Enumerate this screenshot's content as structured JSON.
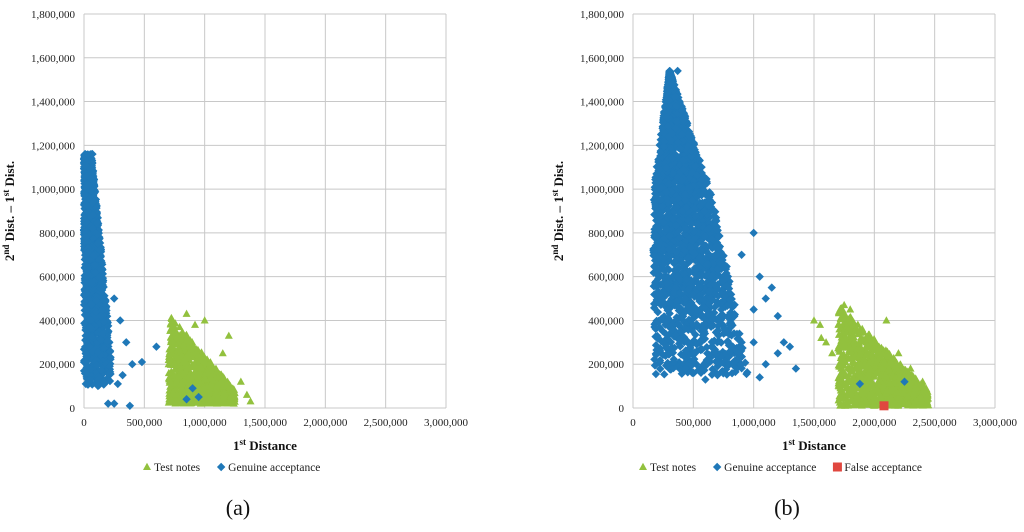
{
  "colors": {
    "test": "#92c13e",
    "genuine": "#1f78b8",
    "false": "#e0473f",
    "grid": "#c8c8c8"
  },
  "chart_data": [
    {
      "type": "scatter",
      "panel_label": "(a)",
      "xlabel_main": "1",
      "xlabel_sup": "st",
      "xlabel_rest": " Distance",
      "ylabel_parts": [
        "2",
        "nd",
        " Dist. – 1",
        "st",
        " Dist."
      ],
      "xlim": [
        0,
        3000000
      ],
      "ylim": [
        0,
        1800000
      ],
      "x_ticks": [
        "0",
        "500,000",
        "1,000,000",
        "1,500,000",
        "2,000,000",
        "2,500,000",
        "3,000,000"
      ],
      "y_ticks": [
        "0",
        "200,000",
        "400,000",
        "600,000",
        "800,000",
        "1,000,000",
        "1,200,000",
        "1,400,000",
        "1,600,000",
        "1,800,000"
      ],
      "legend": [
        "Test notes",
        "Genuine acceptance"
      ],
      "series": [
        {
          "name": "Test notes",
          "marker": "triangle",
          "clusters": [
            {
              "x": [
                700000,
                1250000
              ],
              "y": [
                20000,
                430000
              ],
              "count": 900,
              "shape": "wedge"
            }
          ],
          "points": [
            [
              1000000,
              400000
            ],
            [
              850000,
              430000
            ],
            [
              920000,
              380000
            ],
            [
              1300000,
              120000
            ],
            [
              1350000,
              60000
            ],
            [
              1380000,
              30000
            ],
            [
              1150000,
              250000
            ],
            [
              1200000,
              330000
            ]
          ]
        },
        {
          "name": "Genuine acceptance",
          "marker": "diamond",
          "clusters": [
            {
              "x": [
                0,
                250000
              ],
              "y": [
                100000,
                1160000
              ],
              "count": 1400,
              "shape": "tail"
            }
          ],
          "points": [
            [
              70000,
              1160000
            ],
            [
              250000,
              20000
            ],
            [
              380000,
              10000
            ],
            [
              200000,
              20000
            ],
            [
              600000,
              280000
            ],
            [
              480000,
              210000
            ],
            [
              400000,
              200000
            ],
            [
              350000,
              300000
            ],
            [
              300000,
              400000
            ],
            [
              900000,
              90000
            ],
            [
              850000,
              40000
            ],
            [
              950000,
              50000
            ],
            [
              280000,
              110000
            ],
            [
              320000,
              150000
            ],
            [
              250000,
              500000
            ]
          ]
        }
      ]
    },
    {
      "type": "scatter",
      "panel_label": "(b)",
      "xlabel_main": "1",
      "xlabel_sup": "st",
      "xlabel_rest": " Distance",
      "ylabel_parts": [
        "2",
        "nd",
        " Dist. – 1",
        "st",
        " Dist."
      ],
      "xlim": [
        0,
        3000000
      ],
      "ylim": [
        0,
        1800000
      ],
      "x_ticks": [
        "0",
        "500,000",
        "1,000,000",
        "1,500,000",
        "2,000,000",
        "2,500,000",
        "3,000,000"
      ],
      "y_ticks": [
        "0",
        "200,000",
        "400,000",
        "600,000",
        "800,000",
        "1,000,000",
        "1,200,000",
        "1,400,000",
        "1,600,000",
        "1,800,000"
      ],
      "legend": [
        "Test notes",
        "Genuine acceptance",
        "False acceptance"
      ],
      "series": [
        {
          "name": "Test notes",
          "marker": "triangle",
          "clusters": [
            {
              "x": [
                1700000,
                2450000
              ],
              "y": [
                10000,
                470000
              ],
              "count": 1100,
              "shape": "wedge"
            }
          ],
          "points": [
            [
              1500000,
              400000
            ],
            [
              1550000,
              380000
            ],
            [
              1650000,
              250000
            ],
            [
              1600000,
              300000
            ],
            [
              1750000,
              470000
            ],
            [
              1800000,
              450000
            ],
            [
              2100000,
              400000
            ],
            [
              2200000,
              250000
            ],
            [
              2300000,
              180000
            ],
            [
              2400000,
              120000
            ],
            [
              1560000,
              320000
            ]
          ]
        },
        {
          "name": "Genuine acceptance",
          "marker": "diamond",
          "clusters": [
            {
              "x": [
                150000,
                900000
              ],
              "y": [
                150000,
                1540000
              ],
              "count": 2200,
              "shape": "blob"
            }
          ],
          "points": [
            [
              370000,
              1540000
            ],
            [
              600000,
              130000
            ],
            [
              700000,
              150000
            ],
            [
              800000,
              200000
            ],
            [
              900000,
              300000
            ],
            [
              1000000,
              450000
            ],
            [
              1050000,
              600000
            ],
            [
              1000000,
              300000
            ],
            [
              1100000,
              500000
            ],
            [
              1200000,
              420000
            ],
            [
              1250000,
              300000
            ],
            [
              1300000,
              280000
            ],
            [
              1350000,
              180000
            ],
            [
              1050000,
              140000
            ],
            [
              1100000,
              200000
            ],
            [
              1200000,
              250000
            ],
            [
              900000,
              700000
            ],
            [
              1000000,
              800000
            ],
            [
              1150000,
              550000
            ],
            [
              1880000,
              110000
            ],
            [
              2250000,
              120000
            ]
          ]
        },
        {
          "name": "False acceptance",
          "marker": "square",
          "clusters": [],
          "points": [
            [
              2080000,
              10000
            ]
          ]
        }
      ]
    }
  ]
}
